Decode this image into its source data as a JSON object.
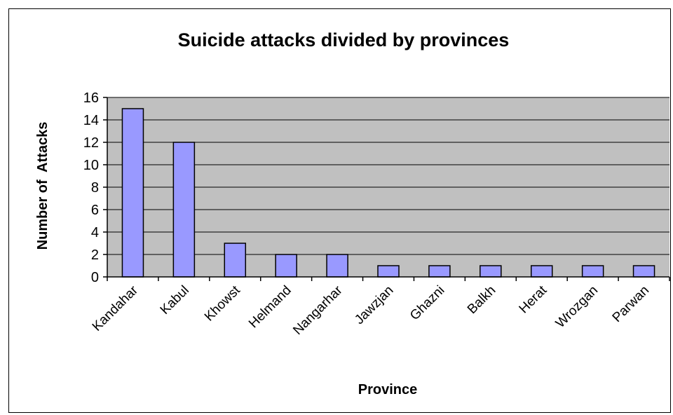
{
  "chart_data": {
    "type": "bar",
    "title": "Suicide attacks divided by provinces",
    "xlabel": "Province",
    "ylabel": "Number of  Attacks",
    "categories": [
      "Kandahar",
      "Kabul",
      "Khowst",
      "Helmand",
      "Nangarhar",
      "Jawzjan",
      "Ghazni",
      "Balkh",
      "Herat",
      "Wrozgan",
      "Parwan"
    ],
    "values": [
      15,
      12,
      3,
      2,
      2,
      1,
      1,
      1,
      1,
      1,
      1
    ],
    "ylim": [
      0,
      16
    ],
    "yticks": [
      0,
      2,
      4,
      6,
      8,
      10,
      12,
      14,
      16
    ],
    "grid": true,
    "legend": "none",
    "colors": {
      "bar_fill": "#9999ff",
      "plot_background": "#c0c0c0",
      "axis": "#000000"
    }
  }
}
